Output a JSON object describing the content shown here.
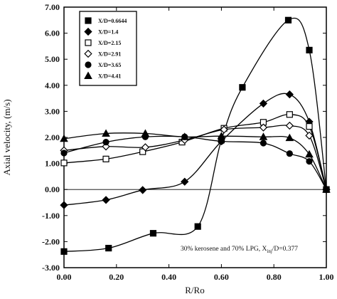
{
  "chart_data": {
    "type": "line",
    "xlabel": "R/Ro",
    "ylabel": "Axial velocity, (m/s)",
    "xlim": [
      0,
      1.0
    ],
    "ylim": [
      -3.0,
      7.0
    ],
    "x_ticks": [
      "0.00",
      "0.20",
      "0.40",
      "0.60",
      "0.80",
      "1.00"
    ],
    "y_ticks": [
      "-3.00",
      "-2.00",
      "-1.00",
      "0.00",
      "1.00",
      "2.00",
      "3.00",
      "4.00",
      "5.00",
      "6.00",
      "7.00"
    ],
    "grid": false,
    "legend_position": "top-left",
    "annotation": {
      "prefix": "30% kerosene and 70% LPG, X",
      "sub": "inj",
      "suffix": "/D=0.377"
    },
    "series": [
      {
        "name": "X/D=0.6644",
        "marker": "filled-square",
        "points": [
          [
            0.0,
            -2.38
          ],
          [
            0.17,
            -2.25
          ],
          [
            0.34,
            -1.68
          ],
          [
            0.51,
            -1.42
          ],
          [
            0.6,
            1.9
          ],
          [
            0.68,
            3.92
          ],
          [
            0.855,
            6.5
          ],
          [
            0.935,
            5.35
          ],
          [
            1.0,
            0.0
          ]
        ]
      },
      {
        "name": "X/D=1.4",
        "marker": "filled-diamond",
        "points": [
          [
            0.0,
            -0.6
          ],
          [
            0.16,
            -0.4
          ],
          [
            0.3,
            -0.02
          ],
          [
            0.46,
            0.3
          ],
          [
            0.6,
            1.85
          ],
          [
            0.76,
            3.3
          ],
          [
            0.86,
            3.65
          ],
          [
            0.935,
            2.6
          ],
          [
            1.0,
            0.0
          ]
        ]
      },
      {
        "name": "X/D=2.15",
        "marker": "open-square",
        "points": [
          [
            0.0,
            1.02
          ],
          [
            0.16,
            1.17
          ],
          [
            0.3,
            1.45
          ],
          [
            0.45,
            1.82
          ],
          [
            0.61,
            2.35
          ],
          [
            0.76,
            2.58
          ],
          [
            0.86,
            2.88
          ],
          [
            0.935,
            2.42
          ],
          [
            1.0,
            0.0
          ]
        ]
      },
      {
        "name": "X/D=2.91",
        "marker": "open-diamond",
        "points": [
          [
            0.0,
            1.5
          ],
          [
            0.16,
            1.65
          ],
          [
            0.31,
            1.62
          ],
          [
            0.46,
            1.9
          ],
          [
            0.61,
            2.3
          ],
          [
            0.76,
            2.38
          ],
          [
            0.86,
            2.45
          ],
          [
            0.935,
            2.07
          ],
          [
            1.0,
            0.0
          ]
        ]
      },
      {
        "name": "X/D=3.65",
        "marker": "filled-circle",
        "points": [
          [
            0.0,
            1.4
          ],
          [
            0.16,
            1.82
          ],
          [
            0.31,
            2.02
          ],
          [
            0.46,
            2.02
          ],
          [
            0.6,
            1.85
          ],
          [
            0.76,
            1.78
          ],
          [
            0.86,
            1.38
          ],
          [
            0.935,
            1.08
          ],
          [
            1.0,
            0.0
          ]
        ]
      },
      {
        "name": "X/D=4.41",
        "marker": "filled-triangle",
        "points": [
          [
            0.0,
            1.95
          ],
          [
            0.16,
            2.15
          ],
          [
            0.31,
            2.15
          ],
          [
            0.46,
            2.02
          ],
          [
            0.6,
            2.05
          ],
          [
            0.76,
            2.02
          ],
          [
            0.86,
            1.98
          ],
          [
            0.935,
            1.35
          ],
          [
            1.0,
            0.0
          ]
        ]
      }
    ]
  }
}
